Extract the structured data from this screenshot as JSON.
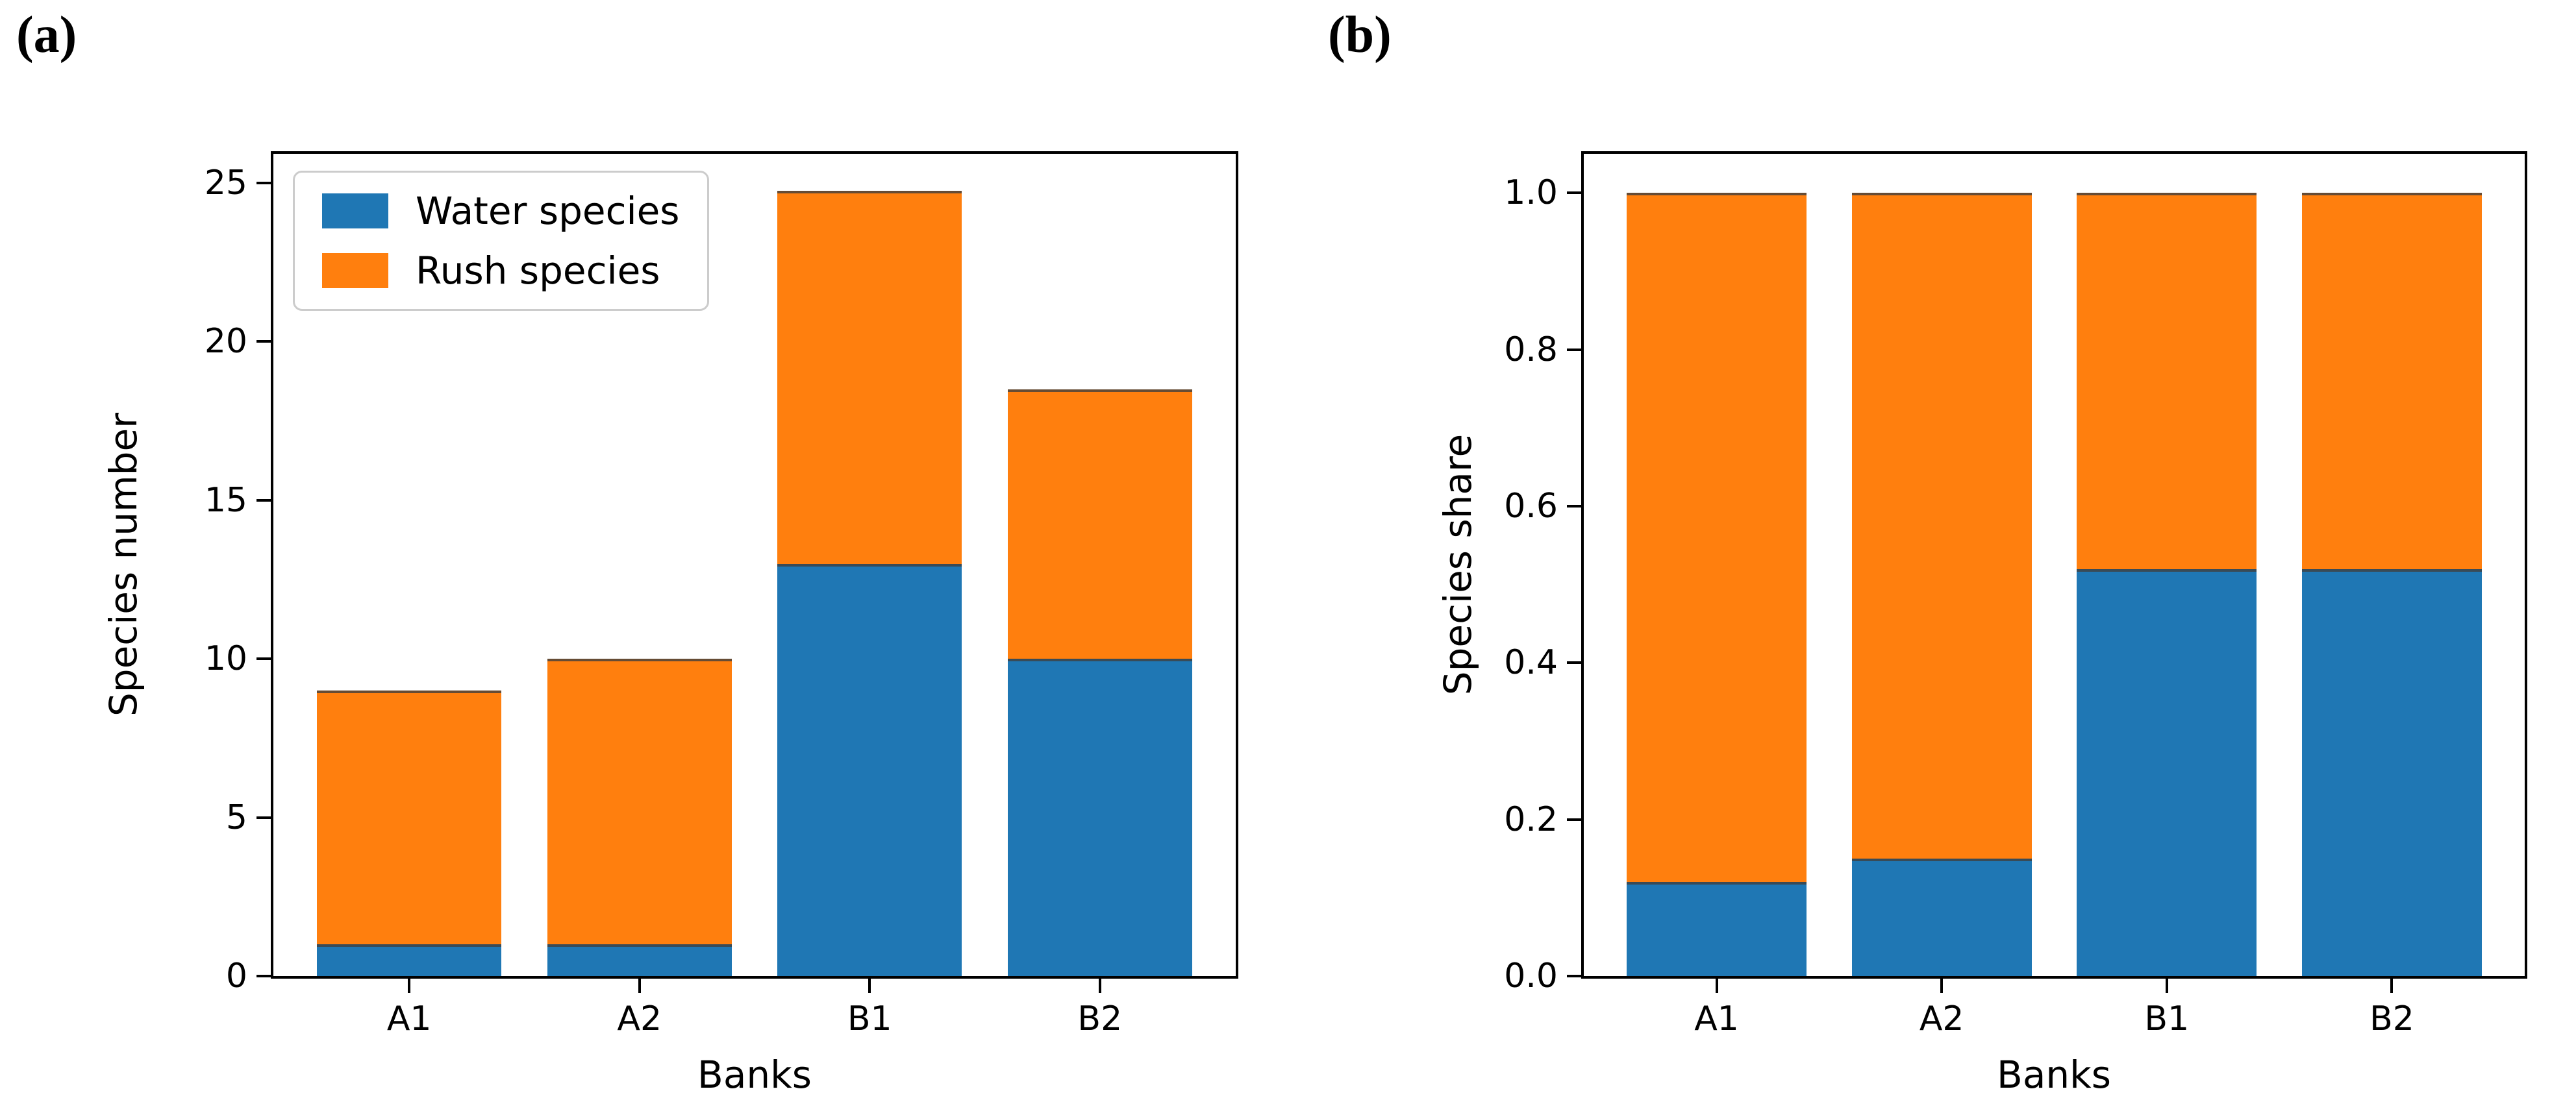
{
  "figure": {
    "background": "#ffffff",
    "text_color": "#000000",
    "bar_edge_color": "rgba(64,64,64,0.8)",
    "legend_border_color": "#cccccc"
  },
  "chart_data": [
    {
      "type": "bar",
      "stacked": true,
      "panel_label": "(a)",
      "title": "",
      "xlabel": "Banks",
      "ylabel": "Species number",
      "categories": [
        "A1",
        "A2",
        "B1",
        "B2"
      ],
      "series": [
        {
          "name": "Water species",
          "color": "#1f77b4",
          "values": [
            1,
            1,
            13,
            10
          ]
        },
        {
          "name": "Rush species",
          "color": "#ff7f0e",
          "values": [
            8,
            9,
            11.75,
            8.5
          ]
        }
      ],
      "totals": [
        9,
        10,
        24.75,
        18.5
      ],
      "ylim": [
        0,
        25.92
      ],
      "yticks": [
        {
          "v": 0,
          "label": "0"
        },
        {
          "v": 5,
          "label": "5"
        },
        {
          "v": 10,
          "label": "10"
        },
        {
          "v": 15,
          "label": "15"
        },
        {
          "v": 20,
          "label": "20"
        },
        {
          "v": 25,
          "label": "25"
        }
      ],
      "grid": false,
      "legend": {
        "visible": true,
        "position": "upper-left",
        "entries": [
          "Water species",
          "Rush species"
        ]
      }
    },
    {
      "type": "bar",
      "stacked": true,
      "panel_label": "(b)",
      "title": "",
      "xlabel": "Banks",
      "ylabel": "Species share",
      "categories": [
        "A1",
        "A2",
        "B1",
        "B2"
      ],
      "series": [
        {
          "name": "Water species",
          "color": "#1f77b4",
          "values": [
            0.12,
            0.15,
            0.52,
            0.52
          ]
        },
        {
          "name": "Rush species",
          "color": "#ff7f0e",
          "values": [
            0.88,
            0.85,
            0.48,
            0.48
          ]
        }
      ],
      "totals": [
        1.0,
        1.0,
        1.0,
        1.0
      ],
      "ylim": [
        0,
        1.05
      ],
      "yticks": [
        {
          "v": 0.0,
          "label": "0.0"
        },
        {
          "v": 0.2,
          "label": "0.2"
        },
        {
          "v": 0.4,
          "label": "0.4"
        },
        {
          "v": 0.6,
          "label": "0.6"
        },
        {
          "v": 0.8,
          "label": "0.8"
        },
        {
          "v": 1.0,
          "label": "1.0"
        }
      ],
      "grid": false,
      "legend": {
        "visible": false,
        "position": null,
        "entries": []
      }
    }
  ]
}
